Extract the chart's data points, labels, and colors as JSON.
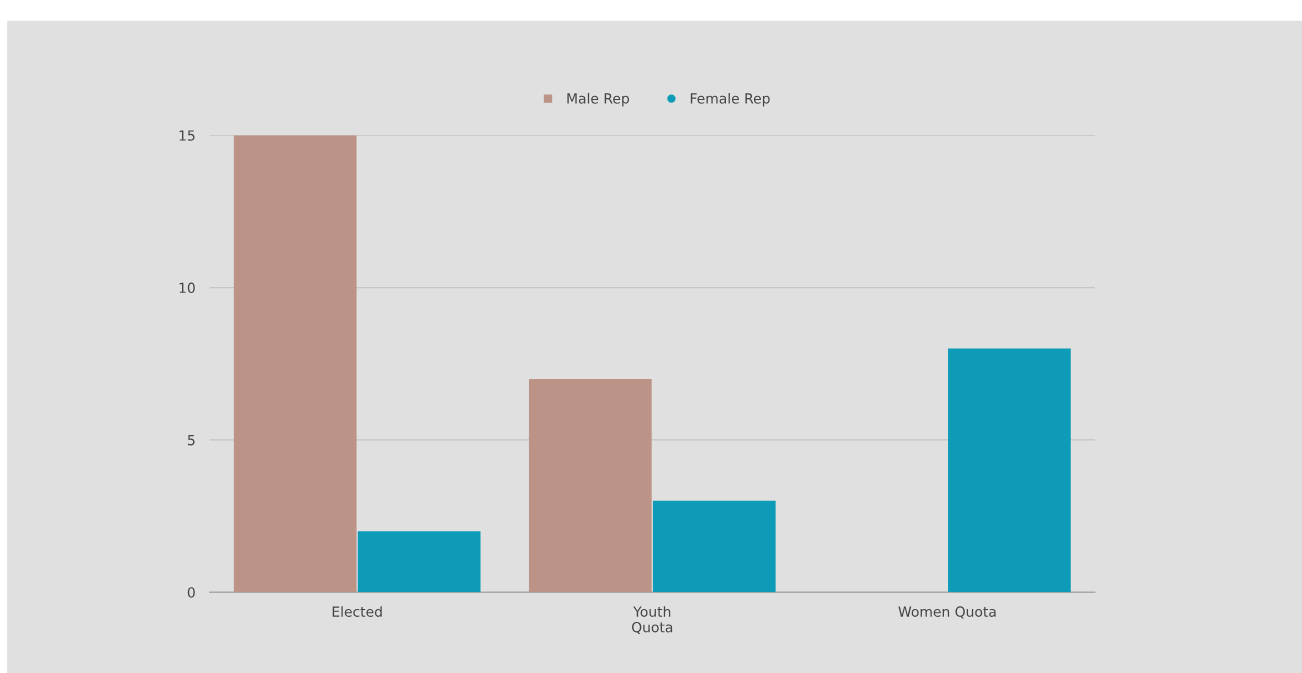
{
  "chart_data": {
    "type": "bar",
    "categories": [
      "Elected",
      "Youth\nQuota",
      "Women Quota"
    ],
    "series": [
      {
        "name": "Male Rep",
        "color": "#bb9487",
        "values": [
          15,
          7,
          0
        ]
      },
      {
        "name": "Female Rep",
        "color": "#0e9bb8",
        "values": [
          2,
          3,
          8
        ]
      }
    ],
    "ylim": [
      0,
      15
    ],
    "yticks": [
      0,
      5,
      10,
      15
    ],
    "grid": "y",
    "legend": "top"
  }
}
